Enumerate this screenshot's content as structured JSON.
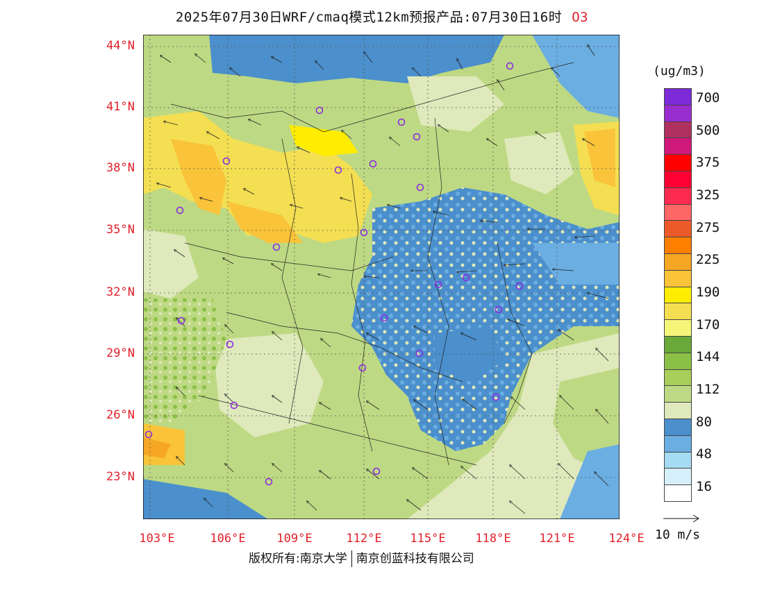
{
  "title": {
    "main": "2025年07月30日WRF/cmaq模式12km预报产品:07月30日16时",
    "species": "O3"
  },
  "latitudes": [
    "44°N",
    "41°N",
    "38°N",
    "35°N",
    "32°N",
    "29°N",
    "26°N",
    "23°N"
  ],
  "longitudes": [
    "103°E",
    "106°E",
    "109°E",
    "112°E",
    "115°E",
    "118°E",
    "121°E",
    "124°E"
  ],
  "colorbar": {
    "unit": "(ug/m3)",
    "levels": [
      {
        "color": "#ffffff"
      },
      {
        "color": "#d6f0fb"
      },
      {
        "color": "#a5dcf3"
      },
      {
        "color": "#6aaee2"
      },
      {
        "color": "#4b8fcc"
      },
      {
        "color": "#dfe9bc"
      },
      {
        "color": "#bed983"
      },
      {
        "color": "#a7cf5a"
      },
      {
        "color": "#8bc047"
      },
      {
        "color": "#6aa83a"
      },
      {
        "color": "#f5f57a"
      },
      {
        "color": "#f4df52"
      },
      {
        "color": "#ffec00"
      },
      {
        "color": "#f9c33a"
      },
      {
        "color": "#f5a623"
      },
      {
        "color": "#ff7f00"
      },
      {
        "color": "#ec5a2a"
      },
      {
        "color": "#ff6666"
      },
      {
        "color": "#ff2a50"
      },
      {
        "color": "#ff0033"
      },
      {
        "color": "#ff0000"
      },
      {
        "color": "#d0187a"
      },
      {
        "color": "#b03060"
      },
      {
        "color": "#9a2dd0"
      },
      {
        "color": "#7d2ad8"
      }
    ],
    "labels": [
      "700",
      "500",
      "375",
      "325",
      "275",
      "225",
      "190",
      "170",
      "144",
      "112",
      "80",
      "48",
      "16"
    ]
  },
  "vector_legend": "10 m/s",
  "footer": {
    "copyright": "版权所有:南京大学",
    "company": "南京创蓝科技有限公司"
  }
}
